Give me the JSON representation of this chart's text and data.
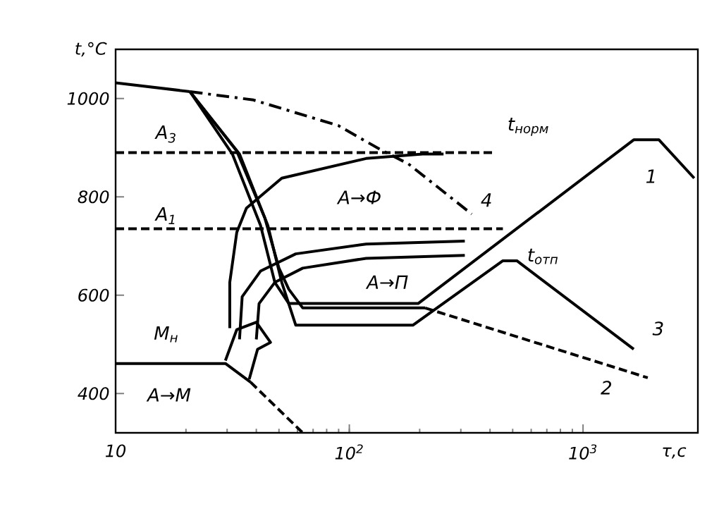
{
  "chart_data": {
    "type": "line",
    "xlabel": "τ,с",
    "ylabel": "t,°C",
    "log": "x",
    "marker": "none",
    "xlim": [
      10,
      3100
    ],
    "ylim": [
      320,
      1100
    ],
    "xticks": [
      10,
      {
        "value": 100,
        "label": "10$^{2}$"
      },
      {
        "value": 1000,
        "label": "10$^{3}$"
      }
    ],
    "yticks": [
      400,
      600,
      800,
      1000
    ],
    "series": [
      {
        "color": "#000000",
        "line_style": "dashed",
        "x": [
          10,
          411
        ],
        "values": [
          890,
          890
        ]
      },
      {
        "color": "#000000",
        "line_style": "dashed",
        "x": [
          10,
          454
        ],
        "values": [
          735,
          735
        ]
      },
      {
        "color": "#000000",
        "line_style": "solid",
        "x": [
          10,
          29.5,
          37.8
        ],
        "values": [
          461,
          461,
          423
        ]
      },
      {
        "color": "#000000",
        "line_style": "dashed",
        "x": [
          37.8,
          63.2
        ],
        "values": [
          423,
          320
        ]
      },
      {
        "color": "#000000",
        "line_style": "solid",
        "x": [
          10,
          20.8
        ],
        "values": [
          1032,
          1014
        ]
      },
      {
        "color": "#000000",
        "line_style": "dashdot",
        "x": [
          20.8,
          38.9,
          89.6,
          136,
          179,
          334
        ],
        "values": [
          1014,
          997,
          945,
          896,
          867,
          765
        ]
      },
      {
        "color": "#000000",
        "line_style": "solid",
        "x": [
          30.8,
          30.8,
          33.0,
          36.3,
          51.4,
          118,
          206,
          253
        ],
        "values": [
          533,
          626,
          728,
          777,
          838,
          878,
          887,
          887
        ]
      },
      {
        "color": "#000000",
        "line_style": "solid",
        "x": [
          33.9,
          34.8,
          41.7,
          59.0,
          118,
          312
        ],
        "values": [
          510,
          597,
          649,
          684,
          704,
          710
        ]
      },
      {
        "color": "#000000",
        "line_style": "solid",
        "x": [
          40.0,
          41.1,
          48.0,
          63.2,
          118,
          312
        ],
        "values": [
          510,
          583,
          626,
          655,
          675,
          681
        ]
      },
      {
        "color": "#000000",
        "line_style": "solid",
        "x": [
          29.5,
          33.0,
          40.0,
          46.0,
          40.5,
          37.3
        ],
        "values": [
          467,
          530,
          545,
          504,
          490,
          429
        ]
      },
      {
        "color": "#000000",
        "line_style": "solid",
        "x": [
          20.8,
          31.6,
          41.7,
          48.0,
          55.1,
          197,
          1648,
          2113,
          2990
        ],
        "values": [
          1014,
          887,
          742,
          626,
          583,
          583,
          916,
          916,
          838
        ]
      },
      {
        "color": "#000000",
        "line_style": "solid",
        "x": [
          20.8,
          33.0,
          43.5,
          50.0,
          55.1,
          63.2,
          211
        ],
        "values": [
          1014,
          893,
          757,
          655,
          612,
          574,
          574
        ]
      },
      {
        "color": "#000000",
        "line_style": "dashed",
        "x": [
          211,
          1892
        ],
        "values": [
          574,
          432
        ]
      },
      {
        "color": "#000000",
        "line_style": "solid",
        "x": [
          20.8,
          33.9,
          44.8,
          51.4,
          59.0,
          187,
          454,
          521,
          1648
        ],
        "values": [
          1014,
          887,
          742,
          626,
          539,
          539,
          670,
          670,
          490
        ]
      }
    ],
    "annotations": [
      "A$_{3}$",
      "A$_{1}$",
      "M$_{н}$",
      "A→M",
      "A→Ф",
      "A→П",
      "t$_{норм}$",
      "t$_{отп}$",
      "1",
      "2",
      "3",
      "4"
    ]
  }
}
